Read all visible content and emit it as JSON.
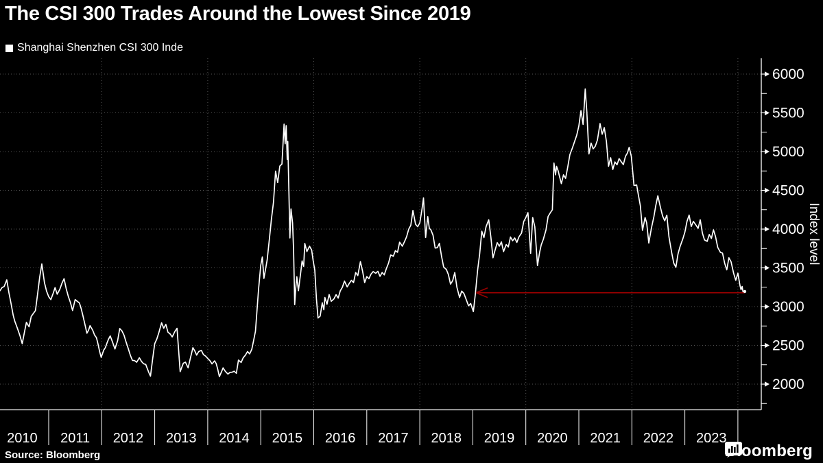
{
  "title": "The CSI 300 Trades Around the Lowest Since 2019",
  "legend": {
    "label": "Shanghai Shenzhen CSI 300 Inde",
    "marker_color": "#ffffff"
  },
  "source": "Source: Bloomberg",
  "brand": {
    "wordmark": "Bloomberg",
    "logo_icon": "bloomberg-bars-bubble"
  },
  "colors": {
    "background": "#000000",
    "line": "#ffffff",
    "grid": "#9a9a9a",
    "axis": "#ffffff",
    "text": "#ffffff",
    "arrow": "#990000"
  },
  "chart_data": {
    "type": "line",
    "title": "The CSI 300 Trades Around the Lowest Since 2019",
    "series_name": "Shanghai Shenzhen CSI 300 Inde",
    "xlabel": "",
    "ylabel": "Index level",
    "x_year_labels": [
      "2010",
      "2011",
      "2012",
      "2013",
      "2014",
      "2015",
      "2016",
      "2017",
      "2018",
      "2019",
      "2020",
      "2021",
      "2022",
      "2023"
    ],
    "x_range_years": [
      2010.08,
      2024.44
    ],
    "ylim_axis": [
      1700,
      6200
    ],
    "y_major_ticks": [
      2000,
      2500,
      3000,
      3500,
      4000,
      4500,
      5000,
      5500,
      6000
    ],
    "y_minor_ticks": [
      1750,
      2250,
      2750,
      3250,
      3750,
      4250,
      4750,
      5250,
      5750
    ],
    "grid_vertical_years": [
      2012,
      2014,
      2016,
      2018,
      2020,
      2022,
      2024
    ],
    "grid_style": "dotted",
    "legend_position": "top-left",
    "noise_amplitude": 26,
    "noise_seed": 7,
    "annotation_arrow": {
      "y_value": 3179,
      "t_tip": 2019.06,
      "t_tail": 2024.13,
      "color": "#990000"
    },
    "points": [
      [
        2010.08,
        3204
      ],
      [
        2010.16,
        3260
      ],
      [
        2010.21,
        3345
      ],
      [
        2010.25,
        3180
      ],
      [
        2010.33,
        2890
      ],
      [
        2010.42,
        2700
      ],
      [
        2010.5,
        2520
      ],
      [
        2010.58,
        2797
      ],
      [
        2010.63,
        2740
      ],
      [
        2010.67,
        2873
      ],
      [
        2010.75,
        2950
      ],
      [
        2010.83,
        3381
      ],
      [
        2010.87,
        3550
      ],
      [
        2010.92,
        3310
      ],
      [
        2010.96,
        3200
      ],
      [
        2011.0,
        3128
      ],
      [
        2011.04,
        3090
      ],
      [
        2011.12,
        3245
      ],
      [
        2011.16,
        3160
      ],
      [
        2011.21,
        3223
      ],
      [
        2011.29,
        3360
      ],
      [
        2011.37,
        3132
      ],
      [
        2011.45,
        2950
      ],
      [
        2011.5,
        3090
      ],
      [
        2011.58,
        3047
      ],
      [
        2011.65,
        2872
      ],
      [
        2011.72,
        2657
      ],
      [
        2011.78,
        2754
      ],
      [
        2011.83,
        2695
      ],
      [
        2011.9,
        2600
      ],
      [
        2011.99,
        2346
      ],
      [
        2012.04,
        2442
      ],
      [
        2012.1,
        2530
      ],
      [
        2012.16,
        2621
      ],
      [
        2012.2,
        2550
      ],
      [
        2012.25,
        2454
      ],
      [
        2012.3,
        2560
      ],
      [
        2012.34,
        2717
      ],
      [
        2012.42,
        2632
      ],
      [
        2012.5,
        2461
      ],
      [
        2012.58,
        2306
      ],
      [
        2012.66,
        2282
      ],
      [
        2012.71,
        2340
      ],
      [
        2012.75,
        2293
      ],
      [
        2012.83,
        2254
      ],
      [
        2012.92,
        2103
      ],
      [
        2012.96,
        2320
      ],
      [
        2013.0,
        2522
      ],
      [
        2013.08,
        2669
      ],
      [
        2013.13,
        2791
      ],
      [
        2013.17,
        2720
      ],
      [
        2013.21,
        2771
      ],
      [
        2013.25,
        2670
      ],
      [
        2013.33,
        2609
      ],
      [
        2013.38,
        2680
      ],
      [
        2013.42,
        2720
      ],
      [
        2013.48,
        2161
      ],
      [
        2013.54,
        2270
      ],
      [
        2013.58,
        2283
      ],
      [
        2013.63,
        2210
      ],
      [
        2013.67,
        2328
      ],
      [
        2013.72,
        2470
      ],
      [
        2013.79,
        2374
      ],
      [
        2013.83,
        2420
      ],
      [
        2013.88,
        2435
      ],
      [
        2013.92,
        2380
      ],
      [
        2014.0,
        2331
      ],
      [
        2014.08,
        2261
      ],
      [
        2014.13,
        2300
      ],
      [
        2014.16,
        2264
      ],
      [
        2014.22,
        2097
      ],
      [
        2014.29,
        2210
      ],
      [
        2014.33,
        2166
      ],
      [
        2014.38,
        2130
      ],
      [
        2014.42,
        2152
      ],
      [
        2014.5,
        2166
      ],
      [
        2014.54,
        2140
      ],
      [
        2014.58,
        2310
      ],
      [
        2014.63,
        2280
      ],
      [
        2014.67,
        2342
      ],
      [
        2014.75,
        2420
      ],
      [
        2014.79,
        2390
      ],
      [
        2014.83,
        2448
      ],
      [
        2014.9,
        2683
      ],
      [
        2014.96,
        3234
      ],
      [
        2015.0,
        3534
      ],
      [
        2015.03,
        3641
      ],
      [
        2015.06,
        3364
      ],
      [
        2015.12,
        3599
      ],
      [
        2015.2,
        4124
      ],
      [
        2015.24,
        4350
      ],
      [
        2015.28,
        4748
      ],
      [
        2015.32,
        4600
      ],
      [
        2015.36,
        4813
      ],
      [
        2015.4,
        4840
      ],
      [
        2015.44,
        5354
      ],
      [
        2015.46,
        5100
      ],
      [
        2015.48,
        5335
      ],
      [
        2015.5,
        4900
      ],
      [
        2015.51,
        5130
      ],
      [
        2015.53,
        4500
      ],
      [
        2015.55,
        3886
      ],
      [
        2015.57,
        4260
      ],
      [
        2015.6,
        4080
      ],
      [
        2015.62,
        3720
      ],
      [
        2015.64,
        3026
      ],
      [
        2015.66,
        3240
      ],
      [
        2015.68,
        3385
      ],
      [
        2015.71,
        3205
      ],
      [
        2015.75,
        3420
      ],
      [
        2015.78,
        3590
      ],
      [
        2015.81,
        3520
      ],
      [
        2015.83,
        3815
      ],
      [
        2015.87,
        3710
      ],
      [
        2015.92,
        3780
      ],
      [
        2015.96,
        3731
      ],
      [
        2016.02,
        3470
      ],
      [
        2016.05,
        3100
      ],
      [
        2016.08,
        2853
      ],
      [
        2016.12,
        2877
      ],
      [
        2016.16,
        3050
      ],
      [
        2016.19,
        2960
      ],
      [
        2016.21,
        3119
      ],
      [
        2016.25,
        3030
      ],
      [
        2016.29,
        3156
      ],
      [
        2016.33,
        3069
      ],
      [
        2016.38,
        3100
      ],
      [
        2016.42,
        3154
      ],
      [
        2016.46,
        3110
      ],
      [
        2016.5,
        3203
      ],
      [
        2016.54,
        3250
      ],
      [
        2016.58,
        3329
      ],
      [
        2016.63,
        3254
      ],
      [
        2016.67,
        3300
      ],
      [
        2016.71,
        3340
      ],
      [
        2016.75,
        3310
      ],
      [
        2016.79,
        3440
      ],
      [
        2016.83,
        3400
      ],
      [
        2016.88,
        3580
      ],
      [
        2016.92,
        3460
      ],
      [
        2016.96,
        3310
      ],
      [
        2017.0,
        3388
      ],
      [
        2017.04,
        3360
      ],
      [
        2017.08,
        3420
      ],
      [
        2017.12,
        3452
      ],
      [
        2017.17,
        3430
      ],
      [
        2017.21,
        3456
      ],
      [
        2017.25,
        3390
      ],
      [
        2017.29,
        3440
      ],
      [
        2017.33,
        3410
      ],
      [
        2017.37,
        3492
      ],
      [
        2017.41,
        3560
      ],
      [
        2017.45,
        3666
      ],
      [
        2017.5,
        3650
      ],
      [
        2017.54,
        3722
      ],
      [
        2017.58,
        3700
      ],
      [
        2017.62,
        3831
      ],
      [
        2017.67,
        3780
      ],
      [
        2017.71,
        3836
      ],
      [
        2017.75,
        3900
      ],
      [
        2017.79,
        3998
      ],
      [
        2017.83,
        4050
      ],
      [
        2017.87,
        4240
      ],
      [
        2017.92,
        4063
      ],
      [
        2017.96,
        4031
      ],
      [
        2018.0,
        4080
      ],
      [
        2018.04,
        4250
      ],
      [
        2018.07,
        4403
      ],
      [
        2018.11,
        3891
      ],
      [
        2018.15,
        4160
      ],
      [
        2018.18,
        4010
      ],
      [
        2018.21,
        3989
      ],
      [
        2018.25,
        3920
      ],
      [
        2018.29,
        3756
      ],
      [
        2018.33,
        3760
      ],
      [
        2018.37,
        3817
      ],
      [
        2018.41,
        3650
      ],
      [
        2018.45,
        3510
      ],
      [
        2018.5,
        3480
      ],
      [
        2018.54,
        3413
      ],
      [
        2018.58,
        3290
      ],
      [
        2018.62,
        3334
      ],
      [
        2018.66,
        3439
      ],
      [
        2018.7,
        3250
      ],
      [
        2018.75,
        3118
      ],
      [
        2018.79,
        3200
      ],
      [
        2018.83,
        3172
      ],
      [
        2018.87,
        3100
      ],
      [
        2018.92,
        3011
      ],
      [
        2018.96,
        3040
      ],
      [
        2019.01,
        2935
      ],
      [
        2019.05,
        3180
      ],
      [
        2019.09,
        3471
      ],
      [
        2019.13,
        3680
      ],
      [
        2019.17,
        3973
      ],
      [
        2019.21,
        3890
      ],
      [
        2019.25,
        4030
      ],
      [
        2019.3,
        4120
      ],
      [
        2019.34,
        3900
      ],
      [
        2019.38,
        3630
      ],
      [
        2019.42,
        3730
      ],
      [
        2019.46,
        3825
      ],
      [
        2019.5,
        3780
      ],
      [
        2019.54,
        3835
      ],
      [
        2019.58,
        3710
      ],
      [
        2019.63,
        3800
      ],
      [
        2019.67,
        3770
      ],
      [
        2019.71,
        3898
      ],
      [
        2019.75,
        3850
      ],
      [
        2019.79,
        3886
      ],
      [
        2019.83,
        3828
      ],
      [
        2019.87,
        3900
      ],
      [
        2019.92,
        3950
      ],
      [
        2019.96,
        4097
      ],
      [
        2020.0,
        4150
      ],
      [
        2020.04,
        4212
      ],
      [
        2020.09,
        3688
      ],
      [
        2020.13,
        4150
      ],
      [
        2020.17,
        4030
      ],
      [
        2020.22,
        3530
      ],
      [
        2020.26,
        3700
      ],
      [
        2020.29,
        3795
      ],
      [
        2020.33,
        3867
      ],
      [
        2020.38,
        3990
      ],
      [
        2020.42,
        4164
      ],
      [
        2020.46,
        4210
      ],
      [
        2020.5,
        4250
      ],
      [
        2020.53,
        4853
      ],
      [
        2020.56,
        4700
      ],
      [
        2020.58,
        4810
      ],
      [
        2020.61,
        4750
      ],
      [
        2020.63,
        4694
      ],
      [
        2020.67,
        4587
      ],
      [
        2020.71,
        4700
      ],
      [
        2020.75,
        4655
      ],
      [
        2020.79,
        4800
      ],
      [
        2020.83,
        4960
      ],
      [
        2020.88,
        5050
      ],
      [
        2020.92,
        5130
      ],
      [
        2020.96,
        5211
      ],
      [
        2021.0,
        5330
      ],
      [
        2021.04,
        5528
      ],
      [
        2021.08,
        5350
      ],
      [
        2021.12,
        5808
      ],
      [
        2021.15,
        5520
      ],
      [
        2021.19,
        4970
      ],
      [
        2021.23,
        5110
      ],
      [
        2021.27,
        5035
      ],
      [
        2021.31,
        5070
      ],
      [
        2021.35,
        5150
      ],
      [
        2021.4,
        5362
      ],
      [
        2021.44,
        5224
      ],
      [
        2021.48,
        5310
      ],
      [
        2021.52,
        5130
      ],
      [
        2021.56,
        4811
      ],
      [
        2021.6,
        4920
      ],
      [
        2021.64,
        4769
      ],
      [
        2021.68,
        4866
      ],
      [
        2021.72,
        4830
      ],
      [
        2021.76,
        4909
      ],
      [
        2021.8,
        4870
      ],
      [
        2021.84,
        4832
      ],
      [
        2021.88,
        4940
      ],
      [
        2021.95,
        5055
      ],
      [
        2021.99,
        4940
      ],
      [
        2022.04,
        4563
      ],
      [
        2022.09,
        4570
      ],
      [
        2022.12,
        4450
      ],
      [
        2022.16,
        4300
      ],
      [
        2022.2,
        3984
      ],
      [
        2022.25,
        4150
      ],
      [
        2022.28,
        4080
      ],
      [
        2022.32,
        3820
      ],
      [
        2022.38,
        4050
      ],
      [
        2022.45,
        4300
      ],
      [
        2022.49,
        4430
      ],
      [
        2022.54,
        4280
      ],
      [
        2022.58,
        4170
      ],
      [
        2022.62,
        4107
      ],
      [
        2022.66,
        4180
      ],
      [
        2022.7,
        3900
      ],
      [
        2022.75,
        3700
      ],
      [
        2022.79,
        3560
      ],
      [
        2022.83,
        3508
      ],
      [
        2022.87,
        3680
      ],
      [
        2022.91,
        3775
      ],
      [
        2022.96,
        3871
      ],
      [
        2023.0,
        3960
      ],
      [
        2023.04,
        4100
      ],
      [
        2023.08,
        4181
      ],
      [
        2023.12,
        4034
      ],
      [
        2023.16,
        4100
      ],
      [
        2023.21,
        4051
      ],
      [
        2023.25,
        4010
      ],
      [
        2023.29,
        4120
      ],
      [
        2023.33,
        3950
      ],
      [
        2023.37,
        3861
      ],
      [
        2023.42,
        3842
      ],
      [
        2023.46,
        3930
      ],
      [
        2023.5,
        3880
      ],
      [
        2023.54,
        3990
      ],
      [
        2023.58,
        3900
      ],
      [
        2023.62,
        3765
      ],
      [
        2023.67,
        3700
      ],
      [
        2023.71,
        3690
      ],
      [
        2023.75,
        3560
      ],
      [
        2023.79,
        3474
      ],
      [
        2023.83,
        3630
      ],
      [
        2023.87,
        3580
      ],
      [
        2023.92,
        3430
      ],
      [
        2023.96,
        3340
      ],
      [
        2024.0,
        3431
      ],
      [
        2024.04,
        3270
      ],
      [
        2024.06,
        3218
      ],
      [
        2024.08,
        3260
      ],
      [
        2024.1,
        3179
      ],
      [
        2024.12,
        3195
      ]
    ]
  }
}
